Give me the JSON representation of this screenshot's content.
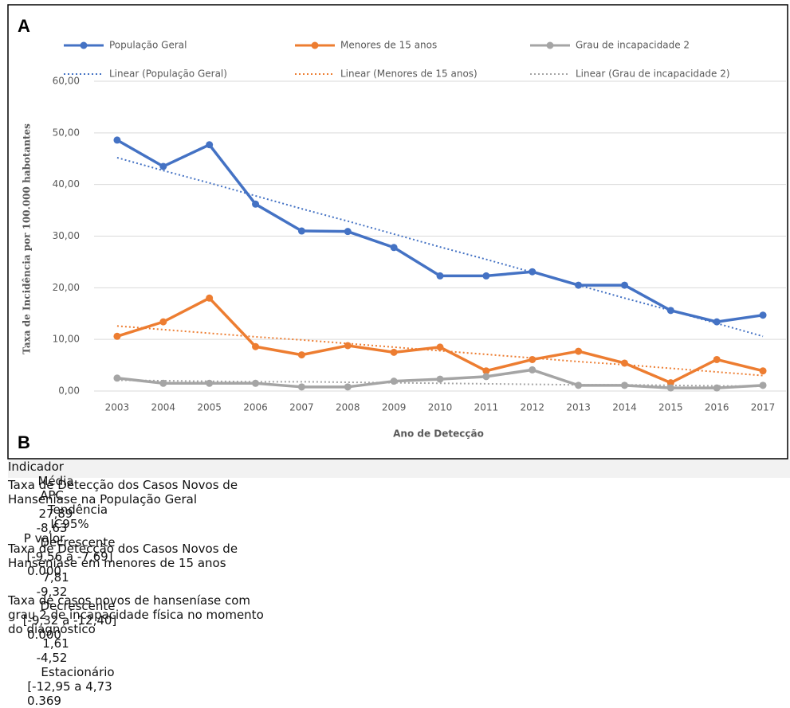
{
  "chart_data": {
    "type": "line",
    "panel_label": "A",
    "categories": [
      "2003",
      "2004",
      "2005",
      "2006",
      "2007",
      "2008",
      "2009",
      "2010",
      "2011",
      "2012",
      "2013",
      "2014",
      "2015",
      "2016",
      "2017"
    ],
    "x_label": "Ano de Detecção",
    "y_label": "Taxa de Incidência  por 100.000 habotantes",
    "ylim": [
      0,
      60
    ],
    "yticks": [
      {
        "value": 0,
        "label": "0,00"
      },
      {
        "value": 10,
        "label": "10,00"
      },
      {
        "value": 20,
        "label": "20,00"
      },
      {
        "value": 30,
        "label": "30,00"
      },
      {
        "value": 40,
        "label": "40,00"
      },
      {
        "value": 50,
        "label": "50,00"
      },
      {
        "value": 60,
        "label": "60,00"
      }
    ],
    "grid": true,
    "series": [
      {
        "name": "População Geral",
        "color": "#4472c4",
        "style": "solid",
        "values": [
          48.6,
          43.5,
          47.7,
          36.2,
          31.0,
          30.9,
          27.8,
          22.3,
          22.3,
          23.1,
          20.5,
          20.5,
          15.6,
          13.4,
          14.7
        ]
      },
      {
        "name": "Menores de 15 anos",
        "color": "#ed7d31",
        "style": "solid",
        "values": [
          10.6,
          13.4,
          18.0,
          8.6,
          7.0,
          8.8,
          7.5,
          8.5,
          3.9,
          6.1,
          7.7,
          5.4,
          1.6,
          6.1,
          3.9
        ]
      },
      {
        "name": "Grau de incapacidade 2",
        "color": "#a5a5a5",
        "style": "solid",
        "values": [
          2.5,
          1.5,
          1.5,
          1.5,
          0.8,
          0.8,
          1.9,
          2.3,
          2.8,
          4.1,
          1.1,
          1.1,
          0.6,
          0.6,
          1.1
        ]
      },
      {
        "name": "Linear (População Geral)",
        "color": "#4472c4",
        "style": "dotted",
        "values": [
          45.2,
          42.7,
          40.3,
          37.8,
          35.3,
          32.9,
          30.4,
          27.9,
          25.5,
          23.0,
          20.5,
          18.0,
          15.6,
          13.1,
          10.6
        ]
      },
      {
        "name": "Linear (Menores de 15 anos)",
        "color": "#ed7d31",
        "style": "dotted",
        "values": [
          12.6,
          11.9,
          11.2,
          10.5,
          9.9,
          9.2,
          8.5,
          7.8,
          7.1,
          6.4,
          5.7,
          5.1,
          4.4,
          3.7,
          3.0
        ]
      },
      {
        "name": "Linear (Grau de incapacidade 2)",
        "color": "#a5a5a5",
        "style": "dotted",
        "values": [
          2.1,
          2.0,
          1.9,
          1.8,
          1.8,
          1.7,
          1.6,
          1.5,
          1.4,
          1.3,
          1.2,
          1.2,
          1.1,
          1.0,
          0.9
        ]
      }
    ]
  },
  "table": {
    "panel_label": "B",
    "columns": [
      "Indicador",
      "Média",
      "APC",
      "Tendência",
      "IC95%",
      "P valor"
    ],
    "rows": [
      [
        "Taxa de Detecção dos Casos Novos de Hanseníase na População Geral",
        "27,89",
        "-8,63",
        "Decrescente",
        "[-9,56 a -7,69]",
        "0.000"
      ],
      [
        "Taxa de Detecção dos Casos Novos de Hanseníase em menores de 15 anos",
        "7,81",
        "-9,32",
        "Decrescente",
        "[-9,32 a -12,40]",
        "0.000"
      ],
      [
        "Taxa de casos novos de hanseníase com grau 2 de incapacidade física no momento do diagnóstico",
        "1,61",
        "-4,52",
        "Estacionário",
        "[-12,95 a 4,73",
        "0.369"
      ]
    ]
  }
}
